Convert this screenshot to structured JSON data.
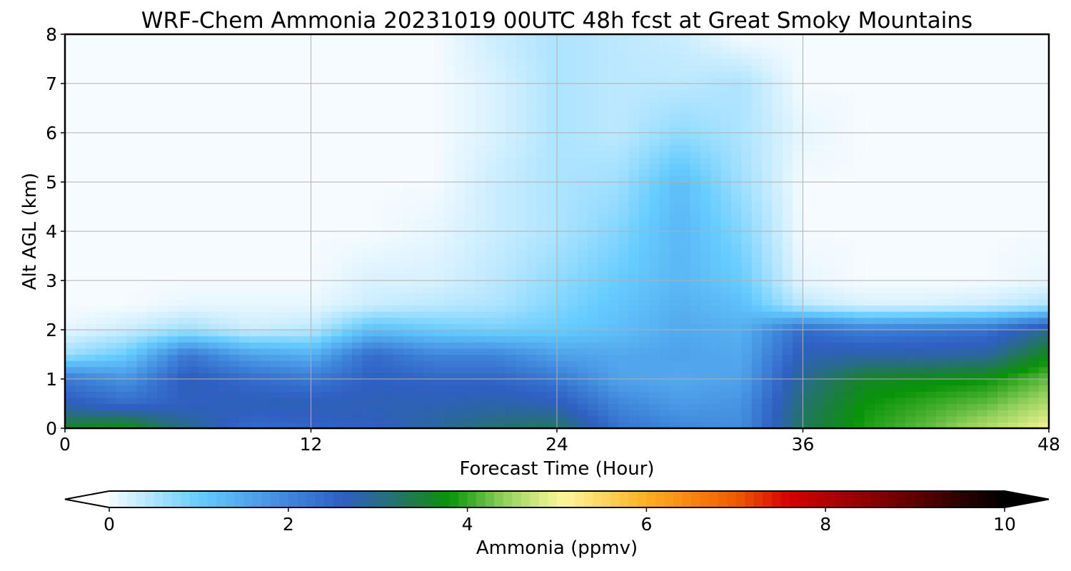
{
  "chart_data": {
    "type": "heatmap",
    "title": "WRF-Chem Ammonia  20231019 00UTC 48h fcst at Great Smoky Mountains",
    "xlabel": "Forecast Time (Hour)",
    "ylabel": "Alt AGL (km)",
    "xlim": [
      0,
      48
    ],
    "ylim": [
      0,
      8
    ],
    "xticks": [
      0,
      12,
      24,
      36,
      48
    ],
    "yticks": [
      0,
      1,
      2,
      3,
      4,
      5,
      6,
      7,
      8
    ],
    "grid": true,
    "x": [
      0,
      3,
      6,
      9,
      12,
      15,
      18,
      21,
      24,
      27,
      30,
      33,
      36,
      39,
      42,
      45,
      48
    ],
    "y": [
      0,
      0.5,
      1,
      1.5,
      2,
      2.5,
      3,
      4,
      5,
      6,
      7,
      8
    ],
    "z": [
      [
        3.6,
        3.8,
        3.0,
        2.4,
        2.5,
        2.6,
        2.9,
        3.2,
        3.3,
        2.3,
        2.0,
        1.9,
        3.3,
        3.9,
        4.2,
        4.6,
        5.0
      ],
      [
        2.7,
        2.4,
        2.6,
        2.7,
        2.7,
        2.7,
        2.7,
        2.8,
        2.7,
        2.0,
        1.7,
        1.8,
        3.2,
        3.8,
        4.0,
        4.2,
        4.6
      ],
      [
        2.2,
        1.8,
        2.7,
        2.4,
        2.2,
        2.6,
        2.5,
        2.5,
        2.2,
        1.6,
        1.5,
        1.6,
        3.0,
        3.6,
        3.7,
        3.8,
        4.2
      ],
      [
        0.6,
        1.0,
        2.2,
        1.6,
        1.4,
        2.4,
        2.0,
        2.0,
        1.6,
        1.5,
        1.6,
        1.5,
        2.7,
        2.8,
        2.8,
        2.9,
        3.7
      ],
      [
        0.1,
        0.3,
        0.6,
        0.3,
        0.4,
        1.2,
        1.0,
        0.9,
        1.0,
        1.2,
        1.5,
        1.4,
        2.4,
        2.1,
        2.2,
        2.3,
        3.0
      ],
      [
        0.0,
        0.0,
        0.1,
        0.1,
        0.1,
        0.3,
        0.4,
        0.5,
        0.8,
        1.1,
        1.4,
        1.2,
        0.4,
        0.2,
        0.2,
        0.3,
        0.5
      ],
      [
        0.0,
        0.0,
        0.0,
        0.0,
        0.0,
        0.2,
        0.2,
        0.4,
        0.7,
        1.0,
        1.3,
        1.0,
        0.1,
        0.0,
        0.0,
        0.0,
        0.1
      ],
      [
        0.0,
        0.0,
        0.0,
        0.0,
        0.0,
        0.0,
        0.1,
        0.3,
        0.5,
        0.8,
        1.3,
        0.8,
        0.0,
        0.0,
        0.0,
        0.0,
        0.0
      ],
      [
        0.0,
        0.0,
        0.0,
        0.0,
        0.0,
        0.0,
        0.0,
        0.3,
        0.5,
        0.6,
        1.2,
        0.6,
        0.0,
        0.0,
        0.0,
        0.0,
        0.0
      ],
      [
        0.0,
        0.0,
        0.0,
        0.0,
        0.0,
        0.0,
        0.0,
        0.2,
        0.5,
        0.4,
        0.7,
        0.5,
        0.1,
        0.0,
        0.0,
        0.0,
        0.0
      ],
      [
        0.0,
        0.0,
        0.0,
        0.0,
        0.0,
        0.0,
        0.0,
        0.2,
        0.5,
        0.4,
        0.4,
        0.5,
        0.0,
        0.0,
        0.0,
        0.0,
        0.0
      ],
      [
        0.0,
        0.0,
        0.0,
        0.0,
        0.0,
        0.0,
        0.0,
        0.3,
        0.5,
        0.4,
        0.3,
        0.0,
        0.0,
        0.0,
        0.0,
        0.0,
        0.0
      ]
    ],
    "colorbar": {
      "label": "Ammonia  (ppmv)",
      "ticks": [
        0,
        2,
        4,
        6,
        8,
        10
      ],
      "range": [
        0,
        10
      ],
      "extend": "both",
      "orientation": "horizontal",
      "color_stops": [
        {
          "value": 0.0,
          "color": "#f5fbff"
        },
        {
          "value": 1.0,
          "color": "#66ccff"
        },
        {
          "value": 2.0,
          "color": "#3f86db"
        },
        {
          "value": 2.6,
          "color": "#2f5fc2"
        },
        {
          "value": 3.0,
          "color": "#2a6a8f"
        },
        {
          "value": 3.5,
          "color": "#1a8038"
        },
        {
          "value": 3.8,
          "color": "#089408"
        },
        {
          "value": 4.4,
          "color": "#8fcf5a"
        },
        {
          "value": 4.9,
          "color": "#e5f08a"
        },
        {
          "value": 5.1,
          "color": "#fff59a"
        },
        {
          "value": 6.0,
          "color": "#ffb020"
        },
        {
          "value": 7.0,
          "color": "#f05a00"
        },
        {
          "value": 7.6,
          "color": "#d40000"
        },
        {
          "value": 8.5,
          "color": "#8c0000"
        },
        {
          "value": 10.0,
          "color": "#000000"
        }
      ],
      "under_color": "#ffffff",
      "over_color": "#000000"
    }
  }
}
